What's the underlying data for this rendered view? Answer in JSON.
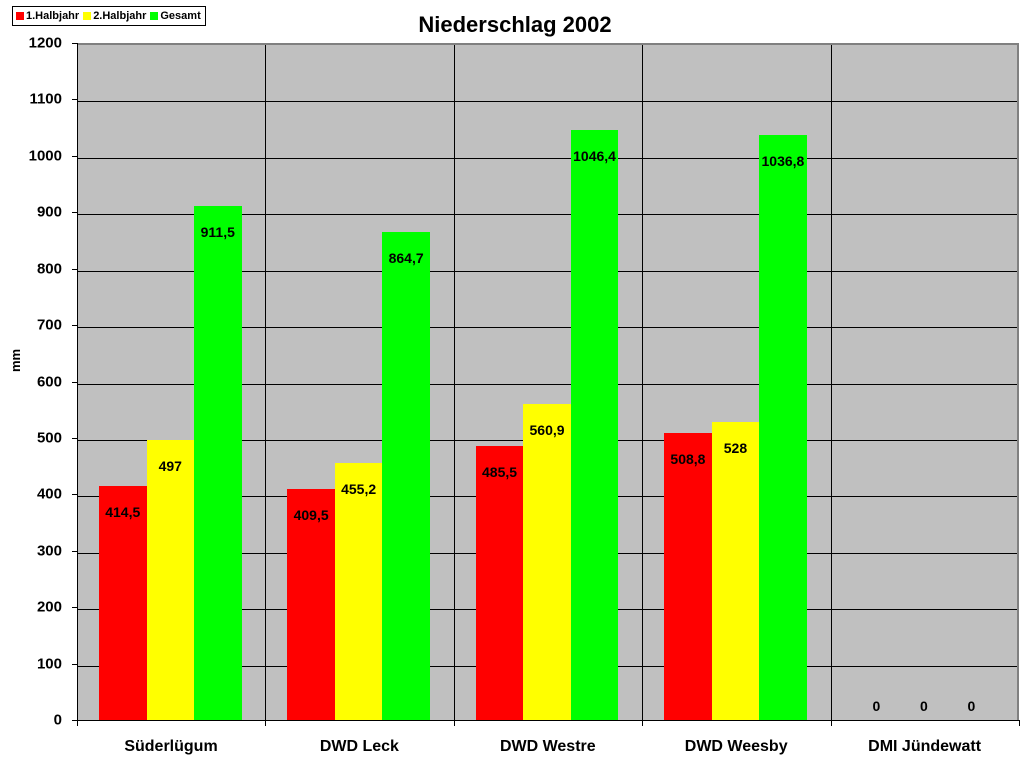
{
  "chart_data": {
    "type": "bar",
    "title": "Niederschlag 2002",
    "xlabel": "",
    "ylabel": "mm",
    "ylim": [
      0,
      1200
    ],
    "yticks": [
      0,
      100,
      200,
      300,
      400,
      500,
      600,
      700,
      800,
      900,
      1000,
      1100,
      1200
    ],
    "grid": true,
    "legend_position": "top-left",
    "categories": [
      "Süderlügum",
      "DWD Leck",
      "DWD Westre",
      "DWD Weesby",
      "DMI Jündewatt"
    ],
    "series": [
      {
        "name": "1.Halbjahr",
        "color": "#ff0000",
        "values": [
          414.5,
          409.5,
          485.5,
          508.8,
          0
        ],
        "labels": [
          "414,5",
          "409,5",
          "485,5",
          "508,8",
          "0"
        ]
      },
      {
        "name": "2.Halbjahr",
        "color": "#ffff00",
        "values": [
          497,
          455.2,
          560.9,
          528,
          0
        ],
        "labels": [
          "497",
          "455,2",
          "560,9",
          "528",
          "0"
        ]
      },
      {
        "name": "Gesamt",
        "color": "#00ff00",
        "values": [
          911.5,
          864.7,
          1046.4,
          1036.8,
          0
        ],
        "labels": [
          "911,5",
          "864,7",
          "1046,4",
          "1036,8",
          "0"
        ]
      }
    ]
  },
  "legend": {
    "items": [
      {
        "label": "1.Halbjahr",
        "color": "#ff0000"
      },
      {
        "label": "2.Halbjahr",
        "color": "#ffff00"
      },
      {
        "label": "Gesamt",
        "color": "#00ff00"
      }
    ]
  },
  "colors": {
    "plot_background": "#c0c0c0",
    "plot_border": "#808080"
  }
}
